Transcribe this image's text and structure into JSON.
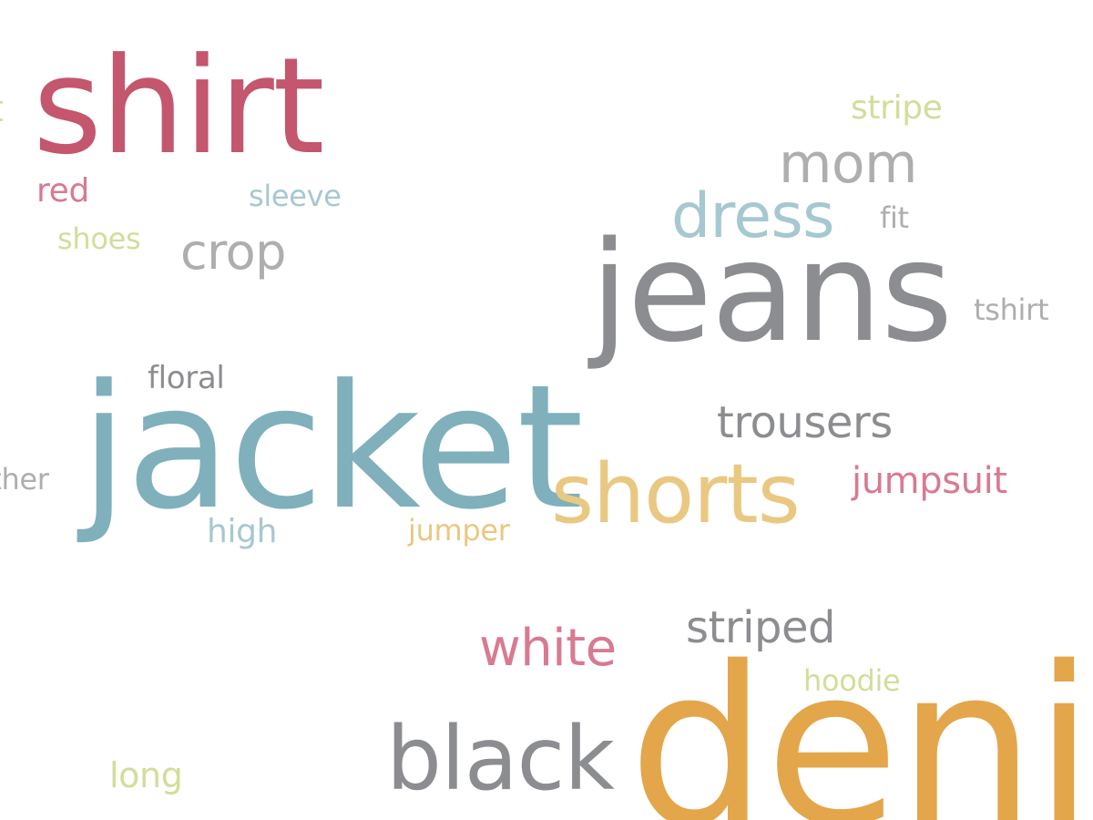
{
  "colors": {
    "background": "#ffffff",
    "crimson": "#c4566e",
    "pink": "#d87a92",
    "teal": "#7fb0bc",
    "light_teal": "#a6c8d0",
    "gray": "#8c8d90",
    "light_gray": "#aeaeb0",
    "gold": "#e3a64a",
    "sand": "#e9c882",
    "lime": "#d4dc9a"
  },
  "words": [
    {
      "id": "shirt",
      "text": "shirt",
      "color": "#c4566e"
    },
    {
      "id": "t",
      "text": "t",
      "color": "#d4dc9a"
    },
    {
      "id": "red",
      "text": "red",
      "color": "#d87a92"
    },
    {
      "id": "sleeve",
      "text": "sleeve",
      "color": "#a6c8d0"
    },
    {
      "id": "shoes",
      "text": "shoes",
      "color": "#d4dc9a"
    },
    {
      "id": "crop",
      "text": "crop",
      "color": "#aeaeb0"
    },
    {
      "id": "stripe",
      "text": "stripe",
      "color": "#d4dc9a"
    },
    {
      "id": "mom",
      "text": "mom",
      "color": "#aeaeb0"
    },
    {
      "id": "dress",
      "text": "dress",
      "color": "#a6c8d0"
    },
    {
      "id": "fit",
      "text": "fit",
      "color": "#aeaeb0"
    },
    {
      "id": "jeans",
      "text": "jeans",
      "color": "#8c8d90"
    },
    {
      "id": "tshirt",
      "text": "tshirt",
      "color": "#aeaeb0"
    },
    {
      "id": "floral",
      "text": "floral",
      "color": "#8c8d90"
    },
    {
      "id": "jacket",
      "text": "jacket",
      "color": "#7fb0bc"
    },
    {
      "id": "leather",
      "text": "leather",
      "color": "#aeaeb0"
    },
    {
      "id": "trousers",
      "text": "trousers",
      "color": "#8c8d90"
    },
    {
      "id": "shorts",
      "text": "shorts",
      "color": "#e9c882"
    },
    {
      "id": "jumpsuit",
      "text": "jumpsuit",
      "color": "#d87a92"
    },
    {
      "id": "high",
      "text": "high",
      "color": "#a6c8d0"
    },
    {
      "id": "jumper",
      "text": "jumper",
      "color": "#e9c882"
    },
    {
      "id": "striped",
      "text": "striped",
      "color": "#8c8d90"
    },
    {
      "id": "white",
      "text": "white",
      "color": "#d87a92"
    },
    {
      "id": "hoodie",
      "text": "hoodie",
      "color": "#d4dc9a"
    },
    {
      "id": "long",
      "text": "long",
      "color": "#d4dc9a"
    },
    {
      "id": "black",
      "text": "black",
      "color": "#8c8d90"
    },
    {
      "id": "denim",
      "text": "denim",
      "color": "#e3a64a"
    }
  ]
}
